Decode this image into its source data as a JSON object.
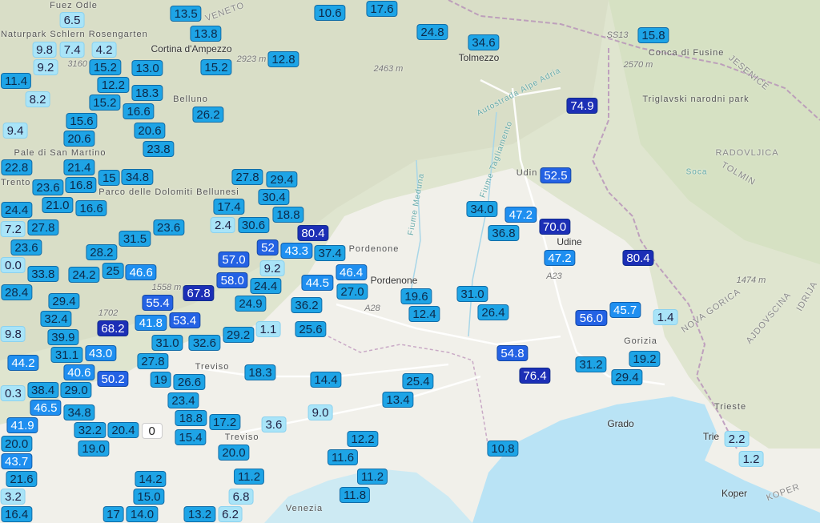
{
  "map": {
    "colors": {
      "plain": "#f1f0ea",
      "mountains": "#dfe5cf",
      "sea": "#b9e3f5",
      "border": "#b58fb8",
      "road": "#ffffff"
    },
    "legend_levels": {
      "light": "#a9e4f8",
      "mid": "#1ea4e6",
      "high": "#1f8ff0",
      "very_high": "#2462e4",
      "extreme": "#1c2fb6"
    }
  },
  "places": [
    "Fuez Odle",
    "Naturpark Schlern Rosengarten",
    "Cortina d'Ampezzo",
    "Belluno",
    "Pale di San Martino",
    "Parco delle Dolomiti Bellunesi",
    "Trento",
    "Tolmezzo",
    "Autostrada Alpe Adria",
    "Fiume Tagliamento",
    "Fiume Meduna",
    "Udin",
    "Udine",
    "Pordenone",
    "Pordenone",
    "Treviso",
    "Treviso",
    "Venezia",
    "Grado",
    "Gorizia",
    "Trieste",
    "Trie",
    "Koper",
    "KOPER",
    "JESENICE",
    "RADOVLJICA",
    "TOLMIN",
    "NOVA GORICA",
    "IDRIJA",
    "AJDOVSCINA",
    "Triglavski narodni park",
    "Conca di Fusine",
    "SS13",
    "A23",
    "A28",
    "Soca",
    "VENETO"
  ],
  "elevations": [
    "2923 m",
    "2463 m",
    "2570 m",
    "1474 m",
    "3160",
    "1702",
    "1558 m"
  ],
  "stations": [
    "6.5",
    "9.8",
    "4.2",
    "7.4",
    "9.2",
    "15.2",
    "12.2",
    "13.0",
    "11.4",
    "8.2",
    "13.5",
    "13.8",
    "10.6",
    "17.6",
    "24.8",
    "34.6",
    "15.8",
    "15.2",
    "12.8",
    "18.3",
    "15.2",
    "16.6",
    "15.6",
    "26.2",
    "74.9",
    "9.4",
    "20.6",
    "20.6",
    "23.8",
    "22.8",
    "21.4",
    "23.6",
    "16.8",
    "15",
    "34.8",
    "21.0",
    "16.6",
    "27.8",
    "29.4",
    "52.5",
    "34.0",
    "17.4",
    "30.4",
    "30.6",
    "18.8",
    "2.4",
    "24.4",
    "27.8",
    "47.2",
    "70.0",
    "36.8",
    "31.5",
    "23.6",
    "7.2",
    "23.6",
    "0.0",
    "80.4",
    "52",
    "43.3",
    "37.4",
    "28.2",
    "24.2",
    "25",
    "46.6",
    "33.8",
    "28.4",
    "57.0",
    "24.4",
    "9.2",
    "46.4",
    "44.5",
    "27.0",
    "58.0",
    "24.9",
    "67.8",
    "55.4",
    "53.4",
    "41.8",
    "29.4",
    "68.2",
    "36.2",
    "32.4",
    "9.8",
    "25.6",
    "29.2",
    "1.1",
    "32.6",
    "31.0",
    "39.9",
    "43.0",
    "27.8",
    "44.2",
    "31.1",
    "40.6",
    "50.2",
    "18.3",
    "19",
    "26.6",
    "14.4",
    "29.0",
    "0.3",
    "38.4",
    "23.4",
    "9.0",
    "3.6",
    "18.8",
    "46.5",
    "34.8",
    "41.9",
    "32.2",
    "20.4",
    "0",
    "17.2",
    "15.4",
    "20.0",
    "19.0",
    "20.0",
    "11.6",
    "12.2",
    "43.7",
    "11.2",
    "14.2",
    "21.6",
    "3.2",
    "15.0",
    "11.8",
    "6.8",
    "6.2",
    "13.2",
    "17",
    "14.0",
    "16.4",
    "19.6",
    "12.4",
    "31.0",
    "26.4",
    "47.2",
    "80.4",
    "56.0",
    "45.7",
    "1.4",
    "54.8",
    "76.4",
    "31.2",
    "19.2",
    "29.4",
    "25.4",
    "13.4",
    "10.8",
    "11.2",
    "2.2",
    "1.2"
  ]
}
